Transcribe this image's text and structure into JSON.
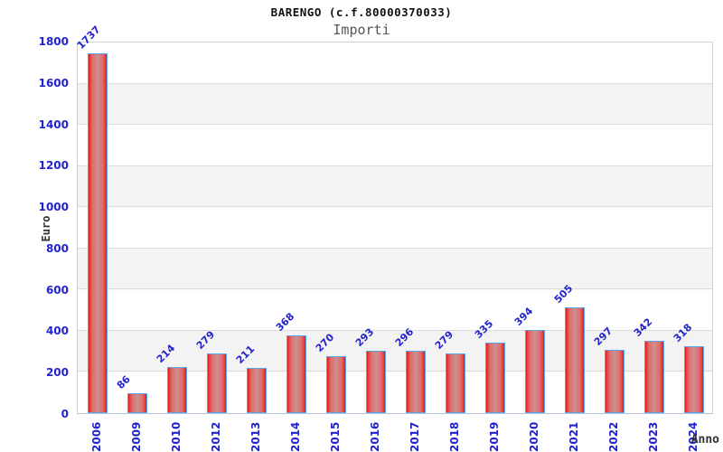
{
  "header": {
    "title": "BARENGO (c.f.80000370033)",
    "subtitle": "Importi"
  },
  "chart_data": {
    "type": "bar",
    "title": "BARENGO (c.f.80000370033)",
    "subtitle": "Importi",
    "xlabel": "Anno",
    "ylabel": "Euro",
    "categories": [
      "2006",
      "2009",
      "2010",
      "2012",
      "2013",
      "2014",
      "2015",
      "2016",
      "2017",
      "2018",
      "2019",
      "2020",
      "2021",
      "2022",
      "2023",
      "2024"
    ],
    "values": [
      1737,
      86,
      214,
      279,
      211,
      368,
      270,
      293,
      296,
      279,
      335,
      394,
      505,
      297,
      342,
      318
    ],
    "ylim": [
      0,
      1800
    ],
    "ytick_step": 200,
    "grid": true,
    "legend": "none",
    "colors": {
      "tick_label": "#2222cc",
      "value_label": "#2222cc",
      "title_text": "#111111",
      "subtitle_text": "#555555",
      "axis_title_text": "#333333",
      "bar_edge": "#e51c1c",
      "bar_mid": "#e06a6a",
      "bar_center": "#cd9090",
      "bar_border": "#58a6e8",
      "band_light": "#ffffff",
      "band_dark": "#f3f3f3",
      "gridline": "#dcdcdc"
    }
  }
}
